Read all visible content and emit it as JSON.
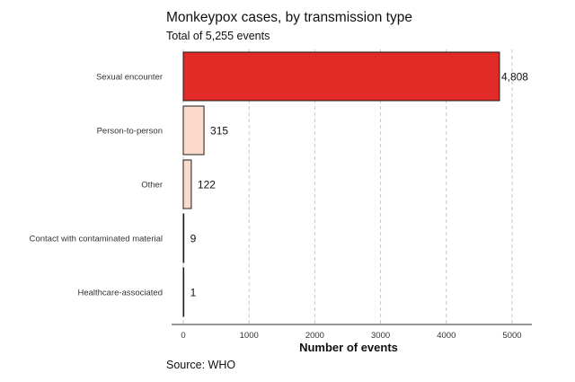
{
  "chart_data": {
    "type": "bar",
    "orientation": "horizontal",
    "title": "Monkeypox cases, by transmission type",
    "subtitle": "Total of 5,255 events",
    "source": "Source: WHO",
    "xlabel": "Number of events",
    "ylabel": "",
    "categories": [
      "Sexual encounter",
      "Person-to-person",
      "Other",
      "Contact with contaminated material",
      "Healthcare-associated"
    ],
    "values": [
      4808,
      315,
      122,
      9,
      1
    ],
    "value_labels": [
      "4,808",
      "315",
      "122",
      "9",
      "1"
    ],
    "xlim": [
      0,
      5250
    ],
    "xticks": [
      0,
      1000,
      2000,
      3000,
      4000,
      5000
    ],
    "grid": "vertical dashed",
    "colors": [
      "#e02b27",
      "#fdd9cc",
      "#fdd9cc",
      "#fdd9cc",
      "#fdd9cc"
    ]
  }
}
